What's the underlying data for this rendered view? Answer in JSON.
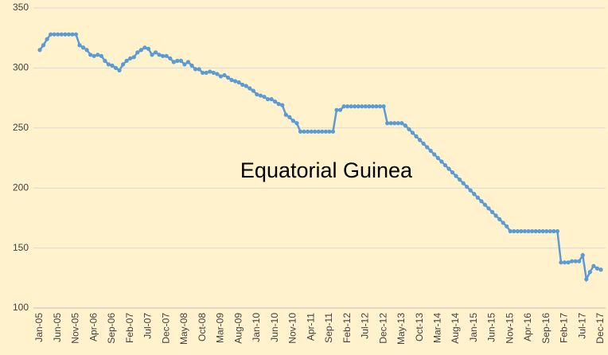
{
  "chart_data": {
    "type": "line",
    "title": "Equatorial Guinea",
    "categories": [
      "Jan-05",
      null,
      null,
      null,
      null,
      "Jun-05",
      null,
      null,
      null,
      null,
      "Nov-05",
      null,
      null,
      null,
      null,
      "Apr-06",
      null,
      null,
      null,
      null,
      "Sep-06",
      null,
      null,
      null,
      null,
      "Feb-07",
      null,
      null,
      null,
      null,
      "Jul-07",
      null,
      null,
      null,
      null,
      "Dec-07",
      null,
      null,
      null,
      null,
      "May-08",
      null,
      null,
      null,
      null,
      "Oct-08",
      null,
      null,
      null,
      null,
      "Mar-09",
      null,
      null,
      null,
      null,
      "Aug-09",
      null,
      null,
      null,
      null,
      "Jan-10",
      null,
      null,
      null,
      null,
      "Jun-10",
      null,
      null,
      null,
      null,
      "Nov-10",
      null,
      null,
      null,
      null,
      "Apr-11",
      null,
      null,
      null,
      null,
      "Sep-11",
      null,
      null,
      null,
      null,
      "Feb-12",
      null,
      null,
      null,
      null,
      "Jul-12",
      null,
      null,
      null,
      null,
      "Dec-12",
      null,
      null,
      null,
      null,
      "May-13",
      null,
      null,
      null,
      null,
      "Oct-13",
      null,
      null,
      null,
      null,
      "Mar-14",
      null,
      null,
      null,
      null,
      "Aug-14",
      null,
      null,
      null,
      null,
      "Jan-15",
      null,
      null,
      null,
      null,
      "Jun-15",
      null,
      null,
      null,
      null,
      "Nov-15",
      null,
      null,
      null,
      null,
      "Apr-16",
      null,
      null,
      null,
      null,
      "Sep-16",
      null,
      null,
      null,
      null,
      "Feb-17",
      null,
      null,
      null,
      null,
      "Jul-17",
      null,
      null,
      null,
      null,
      "Dec-17"
    ],
    "values": [
      315,
      319,
      324,
      328,
      328,
      328,
      328,
      328,
      328,
      328,
      328,
      319,
      317,
      315,
      311,
      310,
      311,
      310,
      306,
      303,
      302,
      300,
      298,
      303,
      306,
      308,
      309,
      313,
      315,
      317,
      316,
      311,
      313,
      311,
      310,
      310,
      308,
      305,
      306,
      306,
      303,
      305,
      302,
      299,
      299,
      296,
      296,
      297,
      296,
      295,
      293,
      294,
      292,
      290,
      289,
      288,
      286,
      285,
      283,
      281,
      278,
      277,
      276,
      274,
      274,
      272,
      270,
      269,
      261,
      259,
      256,
      254,
      247,
      247,
      247,
      247,
      247,
      247,
      247,
      247,
      247,
      247,
      265,
      265,
      268,
      268,
      268,
      268,
      268,
      268,
      268,
      268,
      268,
      268,
      268,
      268,
      254,
      254,
      254,
      254,
      254,
      252,
      249,
      246,
      243,
      240,
      237,
      234,
      231,
      228,
      225,
      222,
      219,
      216,
      213,
      210,
      207,
      204,
      201,
      198,
      195,
      192,
      189,
      186,
      183,
      180,
      177,
      174,
      171,
      168,
      164,
      164,
      164,
      164,
      164,
      164,
      164,
      164,
      164,
      164,
      164,
      164,
      164,
      164,
      138,
      138,
      138,
      139,
      139,
      139,
      144,
      124,
      130,
      135,
      133,
      132
    ],
    "color": "#5b9bd5",
    "ylim": [
      100,
      350
    ],
    "yticks": [
      100,
      150,
      200,
      250,
      300,
      350
    ],
    "grid": true
  }
}
